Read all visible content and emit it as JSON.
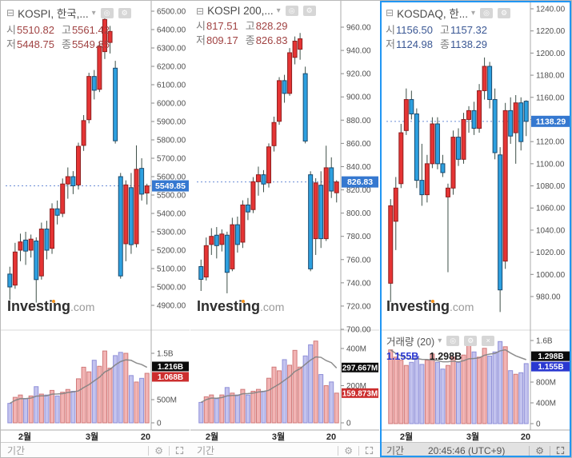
{
  "colors": {
    "candle_up_fill": "#e53434",
    "candle_up_stroke": "#8f1f1f",
    "candle_down_fill": "#2da0e0",
    "candle_down_stroke": "#1a4a6e",
    "wick": "#3d4f47",
    "vol_up_fill": "rgba(232,118,118,0.55)",
    "vol_up_stroke": "#d07a7a",
    "vol_down_fill": "rgba(146,146,224,0.55)",
    "vol_down_stroke": "#8f8fd8",
    "ma_line": "#828282",
    "last_line": "#6b8dd6",
    "price_box": "#3578d0",
    "ma_box": "#0b0b0b",
    "vol_box_up": "#cc2e2e",
    "vol_box_down": "#2a38d0",
    "ohlc_up": "#a04242",
    "ohlc_down": "#3a5794",
    "axis_text": "#4f4f4f",
    "xtick_text": "#262626",
    "active_border": "#2196f3"
  },
  "icons": {
    "collapse": "⊟",
    "caret": "▾",
    "eye": "◎",
    "gear": "⚙",
    "close": "×"
  },
  "watermark": {
    "brand": "Investing",
    "tld": ".com"
  },
  "chart_data": [
    {
      "title": "KOSPI, 한국,...",
      "type": "candlestick+volume",
      "trend": "up",
      "ohlc": {
        "open_label": "시",
        "open": "5510.82",
        "high_label": "고",
        "high": "5561.42",
        "low_label": "저",
        "low": "5448.75",
        "close_label": "종",
        "close": "5549.85"
      },
      "price_axis": {
        "min": 4900,
        "max": 6500,
        "step": 100,
        "decimals": 2
      },
      "last_price": 5549.85,
      "last_price_label": "5549.85",
      "candles": [
        [
          5070,
          5110,
          4930,
          5000
        ],
        [
          5010,
          5240,
          4990,
          5190
        ],
        [
          5200,
          5290,
          5140,
          5245
        ],
        [
          5255,
          5300,
          5120,
          5195
        ],
        [
          5200,
          5285,
          5160,
          5260
        ],
        [
          5250,
          5270,
          4915,
          5040
        ],
        [
          5060,
          5350,
          5040,
          5315
        ],
        [
          5315,
          5360,
          5150,
          5200
        ],
        [
          5210,
          5455,
          5180,
          5425
        ],
        [
          5425,
          5470,
          5340,
          5390
        ],
        [
          5400,
          5590,
          5380,
          5560
        ],
        [
          5560,
          5650,
          5480,
          5600
        ],
        [
          5600,
          5630,
          5505,
          5550
        ],
        [
          5555,
          5785,
          5530,
          5765
        ],
        [
          5770,
          5935,
          5740,
          5905
        ],
        [
          5910,
          6165,
          5890,
          6145
        ],
        [
          6145,
          6180,
          6020,
          6070
        ],
        [
          6075,
          6335,
          6060,
          6310
        ],
        [
          6280,
          6495,
          6240,
          6455
        ],
        [
          6330,
          6420,
          6270,
          6390
        ],
        [
          6190,
          6230,
          5780,
          5795
        ],
        [
          5600,
          5620,
          5045,
          5060
        ],
        [
          5235,
          5580,
          5140,
          5555
        ],
        [
          5540,
          5620,
          5180,
          5230
        ],
        [
          5235,
          5770,
          5215,
          5640
        ],
        [
          5645,
          5700,
          5470,
          5505
        ],
        [
          5510.82,
          5561.42,
          5448.75,
          5549.85
        ]
      ],
      "volumes_b": [
        0.42,
        0.55,
        0.6,
        0.52,
        0.58,
        0.78,
        0.62,
        0.6,
        0.7,
        0.58,
        0.66,
        0.72,
        0.68,
        0.95,
        1.2,
        1.1,
        1.35,
        1.22,
        1.55,
        1.18,
        1.45,
        1.52,
        1.5,
        1.02,
        0.88,
        0.96,
        1.068
      ],
      "volume_axis_ticks": [
        {
          "v": 1.5,
          "label": "1.5B"
        },
        {
          "v": 0.5,
          "label": "500M"
        },
        {
          "v": 0,
          "label": "0"
        }
      ],
      "volume_ma": 1.216,
      "volume_ma_label": "1.216B",
      "volume_last": 1.068,
      "volume_last_label": "1.068B",
      "x_ticks": [
        {
          "label": "2월",
          "x": 30
        },
        {
          "label": "3월",
          "x": 114
        },
        {
          "label": "20",
          "x": 181
        }
      ],
      "toolbar": {
        "period_label": "기간"
      }
    },
    {
      "title": "KOSPI 200,...",
      "type": "candlestick+volume",
      "trend": "up",
      "ohlc": {
        "open_label": "시",
        "open": "817.51",
        "high_label": "고",
        "high": "828.29",
        "low_label": "저",
        "low": "809.17",
        "close_label": "종",
        "close": "826.83"
      },
      "price_axis": {
        "min": 700,
        "max": 960,
        "step": 20,
        "decimals": 2
      },
      "last_price": 826.83,
      "last_price_label": "826.83",
      "candles": [
        [
          754,
          760,
          733,
          743
        ],
        [
          745,
          779,
          742,
          772
        ],
        [
          773,
          787,
          764,
          780
        ],
        [
          781,
          788,
          761,
          772
        ],
        [
          773,
          786,
          767,
          782
        ],
        [
          781,
          784,
          731,
          749
        ],
        [
          752,
          796,
          750,
          790
        ],
        [
          790,
          797,
          766,
          773
        ],
        [
          775,
          811,
          770,
          807
        ],
        [
          807,
          813,
          794,
          801
        ],
        [
          803,
          831,
          800,
          827
        ],
        [
          827,
          840,
          815,
          833
        ],
        [
          833,
          837,
          818,
          825
        ],
        [
          826,
          860,
          822,
          857
        ],
        [
          858,
          883,
          853,
          878
        ],
        [
          879,
          917,
          876,
          914
        ],
        [
          914,
          919,
          895,
          903
        ],
        [
          903,
          942,
          901,
          938
        ],
        [
          934,
          952,
          928,
          948
        ],
        [
          941,
          955,
          932,
          950
        ],
        [
          920,
          926,
          860,
          862
        ],
        [
          833,
          836,
          750,
          752
        ],
        [
          778,
          830,
          764,
          826
        ],
        [
          824,
          836,
          770,
          778
        ],
        [
          778,
          858,
          776,
          839
        ],
        [
          839,
          848,
          813,
          819
        ],
        [
          817.51,
          828.29,
          809.17,
          826.83
        ]
      ],
      "volumes_b": [
        0.11,
        0.14,
        0.15,
        0.13,
        0.15,
        0.19,
        0.16,
        0.15,
        0.18,
        0.15,
        0.17,
        0.18,
        0.17,
        0.24,
        0.3,
        0.28,
        0.34,
        0.31,
        0.39,
        0.3,
        0.36,
        0.42,
        0.44,
        0.26,
        0.2,
        0.22,
        0.159873
      ],
      "volume_axis_ticks": [
        {
          "v": 0.4,
          "label": "400M"
        },
        {
          "v": 0.2,
          "label": "200M"
        },
        {
          "v": 0,
          "label": "0"
        }
      ],
      "volume_ma": 0.297667,
      "volume_ma_label": "297.667M",
      "volume_last": 0.159873,
      "volume_last_label": "159.873M",
      "x_ticks": [
        {
          "label": "2월",
          "x": 27
        },
        {
          "label": "3월",
          "x": 110
        },
        {
          "label": "20",
          "x": 176
        }
      ],
      "toolbar": {
        "period_label": "기간"
      }
    },
    {
      "title": "KOSDAQ, 한...",
      "type": "candlestick+volume",
      "trend": "down",
      "active": true,
      "ohlc": {
        "open_label": "시",
        "open": "1156.50",
        "high_label": "고",
        "high": "1157.32",
        "low_label": "저",
        "low": "1124.98",
        "close_label": "종",
        "close": "1138.29"
      },
      "price_axis": {
        "min": 980,
        "max": 1240,
        "step": 20,
        "decimals": 2
      },
      "last_price": 1138.29,
      "last_price_label": "1138.29",
      "candles": [
        [
          992,
          1068,
          975,
          1062
        ],
        [
          1048,
          1088,
          1022,
          1078
        ],
        [
          1082,
          1136,
          1078,
          1128
        ],
        [
          1130,
          1168,
          1126,
          1158
        ],
        [
          1158,
          1166,
          1140,
          1145
        ],
        [
          1145,
          1150,
          1078,
          1085
        ],
        [
          1085,
          1118,
          1062,
          1072
        ],
        [
          1072,
          1108,
          1065,
          1100
        ],
        [
          1100,
          1142,
          1096,
          1136
        ],
        [
          1136,
          1142,
          1095,
          1100
        ],
        [
          1100,
          1108,
          1088,
          1092
        ],
        [
          1070,
          1082,
          1002,
          1078
        ],
        [
          1078,
          1130,
          1072,
          1124
        ],
        [
          1124,
          1132,
          1098,
          1104
        ],
        [
          1104,
          1146,
          1100,
          1140
        ],
        [
          1140,
          1152,
          1128,
          1148
        ],
        [
          1148,
          1156,
          1126,
          1132
        ],
        [
          1132,
          1172,
          1128,
          1166
        ],
        [
          1166,
          1196,
          1158,
          1188
        ],
        [
          1188,
          1192,
          1150,
          1158
        ],
        [
          1158,
          1168,
          1104,
          1110
        ],
        [
          1108,
          1115,
          966,
          986
        ],
        [
          1012,
          1155,
          1005,
          1148
        ],
        [
          1148,
          1160,
          1118,
          1125
        ],
        [
          1128,
          1162,
          1100,
          1155
        ],
        [
          1155,
          1160,
          1112,
          1120
        ],
        [
          1156.5,
          1157.32,
          1124.98,
          1138.29
        ]
      ],
      "volumes_b": [
        1.42,
        1.28,
        1.22,
        1.12,
        1.18,
        1.3,
        1.14,
        1.22,
        1.34,
        1.18,
        1.05,
        1.12,
        1.28,
        1.18,
        1.32,
        1.52,
        1.38,
        1.28,
        1.45,
        1.3,
        1.38,
        1.58,
        1.48,
        1.02,
        0.95,
        0.98,
        1.155
      ],
      "volume_axis_ticks": [
        {
          "v": 1.6,
          "label": "1.6B"
        },
        {
          "v": 0.8,
          "label": "800M"
        },
        {
          "v": 0.4,
          "label": "400M"
        },
        {
          "v": 0,
          "label": "0"
        }
      ],
      "volume_ma": 1.298,
      "volume_ma_label": "1.298B",
      "volume_last": 1.155,
      "volume_last_label": "1.155B",
      "volume_legend": {
        "title": "거래량 (20)",
        "last_label": "1.155B",
        "ma_label": "1.298B"
      },
      "x_ticks": [
        {
          "label": "2월",
          "x": 33
        },
        {
          "label": "3월",
          "x": 116
        },
        {
          "label": "20",
          "x": 182
        }
      ],
      "toolbar": {
        "period_label": "기간",
        "time": "20:45:46 (UTC+9)"
      }
    }
  ]
}
